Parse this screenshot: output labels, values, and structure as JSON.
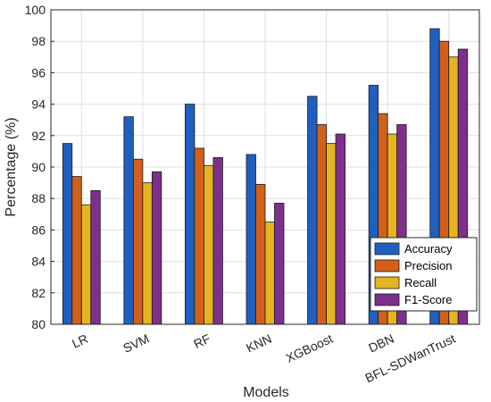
{
  "chart_data": {
    "type": "bar",
    "xlabel": "Models",
    "ylabel": "Percentage (%)",
    "ylim": [
      80,
      100
    ],
    "yticks": [
      80,
      82,
      84,
      86,
      88,
      90,
      92,
      94,
      96,
      98,
      100
    ],
    "grid": true,
    "legend_position": "bottom-right",
    "categories": [
      "LR",
      "SVM",
      "RF",
      "KNN",
      "XGBoost",
      "DBN",
      "BFL-SDWanTrust"
    ],
    "series": [
      {
        "name": "Accuracy",
        "color": "#1f5fbf",
        "values": [
          91.5,
          93.2,
          94.0,
          90.8,
          94.5,
          95.2,
          98.8
        ]
      },
      {
        "name": "Precision",
        "color": "#d2601a",
        "values": [
          89.4,
          90.5,
          91.2,
          88.9,
          92.7,
          93.4,
          98.0
        ]
      },
      {
        "name": "Recall",
        "color": "#e6b422",
        "values": [
          87.6,
          89.0,
          90.1,
          86.5,
          91.5,
          92.1,
          97.0
        ]
      },
      {
        "name": "F1-Score",
        "color": "#7e2f8e",
        "values": [
          88.5,
          89.7,
          90.6,
          87.7,
          92.1,
          92.7,
          97.5
        ]
      }
    ]
  }
}
